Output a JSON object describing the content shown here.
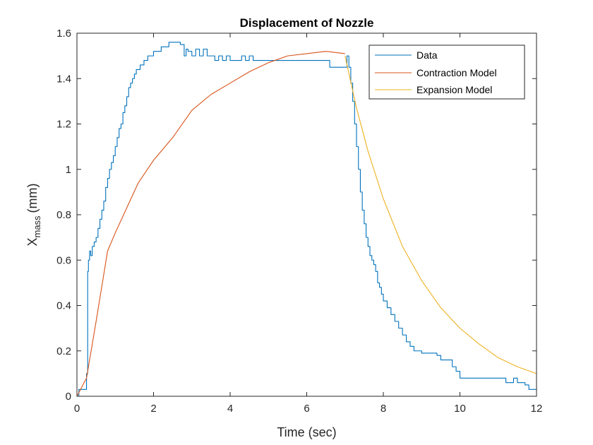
{
  "chart_data": {
    "type": "line",
    "title": "Displacement of Nozzle",
    "xlabel": "Time (sec)",
    "ylabel": "X",
    "ylabel_sub": "mass",
    "ylabel_unit": "(mm)",
    "xlim": [
      0,
      12
    ],
    "ylim": [
      0,
      1.6
    ],
    "xticks": [
      0,
      2,
      4,
      6,
      8,
      10,
      12
    ],
    "yticks": [
      0,
      0.2,
      0.4,
      0.6,
      0.8,
      1,
      1.2,
      1.4,
      1.6
    ],
    "xtick_labels": [
      "0",
      "2",
      "4",
      "6",
      "8",
      "10",
      "12"
    ],
    "ytick_labels": [
      "0",
      "0.2",
      "0.4",
      "0.6",
      "0.8",
      "1",
      "1.2",
      "1.4",
      "1.6"
    ],
    "grid": false,
    "legend_position": "top-right",
    "series": [
      {
        "name": "Data",
        "color": "#0072BD",
        "step": true,
        "x": [
          0,
          0.05,
          0.1,
          0.25,
          0.28,
          0.3,
          0.33,
          0.36,
          0.4,
          0.45,
          0.5,
          0.55,
          0.6,
          0.65,
          0.7,
          0.75,
          0.8,
          0.85,
          0.9,
          0.95,
          1.0,
          1.05,
          1.1,
          1.15,
          1.2,
          1.25,
          1.3,
          1.35,
          1.4,
          1.45,
          1.5,
          1.55,
          1.6,
          1.65,
          1.7,
          1.75,
          1.8,
          1.85,
          1.9,
          2.0,
          2.1,
          2.2,
          2.3,
          2.4,
          2.5,
          2.6,
          2.7,
          2.8,
          2.85,
          2.9,
          3.0,
          3.1,
          3.2,
          3.3,
          3.4,
          3.5,
          3.6,
          3.7,
          3.8,
          3.9,
          4.0,
          4.1,
          4.2,
          4.3,
          4.4,
          4.5,
          4.6,
          4.7,
          5.0,
          5.5,
          6.0,
          6.5,
          6.6,
          6.8,
          7.0,
          7.05,
          7.1,
          7.15,
          7.2,
          7.25,
          7.3,
          7.35,
          7.4,
          7.45,
          7.5,
          7.55,
          7.6,
          7.65,
          7.7,
          7.75,
          7.8,
          7.85,
          7.9,
          7.95,
          8.0,
          8.1,
          8.2,
          8.3,
          8.4,
          8.5,
          8.6,
          8.7,
          8.8,
          8.9,
          9.0,
          9.1,
          9.3,
          9.4,
          9.5,
          9.6,
          9.7,
          9.8,
          9.9,
          10.0,
          10.5,
          11.0,
          11.1,
          11.2,
          11.3,
          11.4,
          11.5,
          11.6,
          11.7,
          11.8,
          11.9,
          12.0
        ],
        "y": [
          0,
          0.03,
          0.03,
          0.1,
          0.55,
          0.6,
          0.64,
          0.62,
          0.66,
          0.68,
          0.7,
          0.74,
          0.78,
          0.82,
          0.86,
          0.92,
          0.96,
          1.0,
          1.03,
          1.06,
          1.1,
          1.14,
          1.18,
          1.2,
          1.25,
          1.28,
          1.32,
          1.36,
          1.38,
          1.4,
          1.42,
          1.44,
          1.44,
          1.46,
          1.46,
          1.48,
          1.48,
          1.5,
          1.5,
          1.52,
          1.52,
          1.54,
          1.54,
          1.56,
          1.56,
          1.56,
          1.55,
          1.5,
          1.53,
          1.52,
          1.5,
          1.53,
          1.5,
          1.53,
          1.5,
          1.5,
          1.48,
          1.5,
          1.48,
          1.5,
          1.48,
          1.48,
          1.48,
          1.5,
          1.48,
          1.5,
          1.48,
          1.48,
          1.48,
          1.48,
          1.48,
          1.48,
          1.45,
          1.45,
          1.45,
          1.5,
          1.45,
          1.38,
          1.3,
          1.2,
          1.1,
          1.0,
          0.9,
          0.82,
          0.76,
          0.7,
          0.66,
          0.62,
          0.6,
          0.58,
          0.55,
          0.5,
          0.48,
          0.45,
          0.42,
          0.39,
          0.36,
          0.33,
          0.3,
          0.27,
          0.24,
          0.22,
          0.2,
          0.2,
          0.19,
          0.19,
          0.19,
          0.18,
          0.16,
          0.16,
          0.16,
          0.13,
          0.11,
          0.08,
          0.08,
          0.08,
          0.08,
          0.06,
          0.06,
          0.08,
          0.06,
          0.06,
          0.05,
          0.03,
          0.03,
          0.03
        ]
      },
      {
        "name": "Contraction Model",
        "color": "#D95319",
        "step": false,
        "x": [
          0,
          0.25,
          0.5,
          0.8,
          1.0,
          1.3,
          1.6,
          2.0,
          2.5,
          3.0,
          3.5,
          4.0,
          4.5,
          5.0,
          5.5,
          6.0,
          6.5,
          7.0
        ],
        "y": [
          0,
          0.08,
          0.33,
          0.64,
          0.72,
          0.83,
          0.94,
          1.04,
          1.14,
          1.26,
          1.33,
          1.38,
          1.43,
          1.47,
          1.5,
          1.51,
          1.52,
          1.51
        ]
      },
      {
        "name": "Expansion Model",
        "color": "#EDB120",
        "step": false,
        "x": [
          7.0,
          7.3,
          7.6,
          8.0,
          8.5,
          9.0,
          9.5,
          10.0,
          10.5,
          11.0,
          11.5,
          12.0
        ],
        "y": [
          1.5,
          1.27,
          1.08,
          0.87,
          0.66,
          0.51,
          0.39,
          0.3,
          0.23,
          0.17,
          0.13,
          0.1
        ]
      }
    ]
  }
}
